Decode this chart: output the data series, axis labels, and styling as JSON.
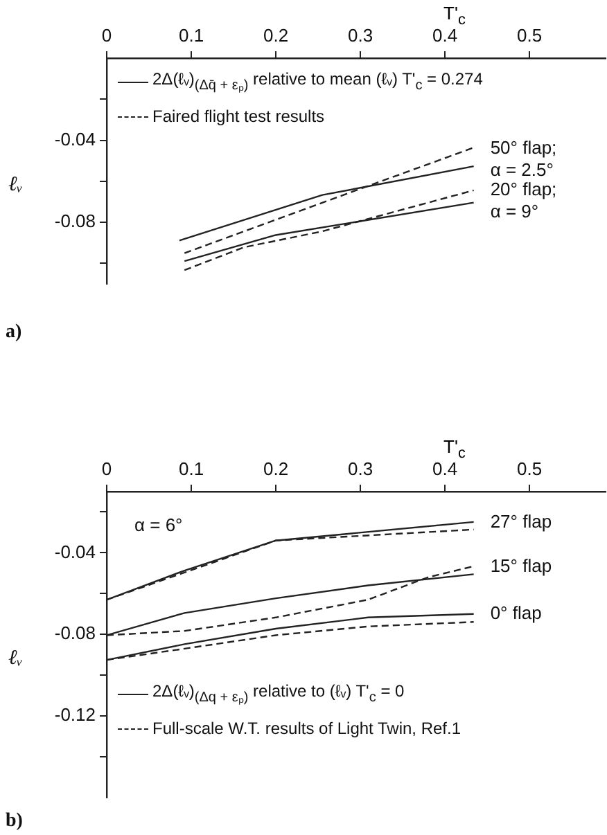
{
  "chart_data": [
    {
      "type": "line",
      "title": "a)",
      "ylabel": "ℓᵥ",
      "xlabel": "T'$_{c}$",
      "xlim": [
        0,
        0.59
      ],
      "xticks": [
        0,
        0.1,
        0.2,
        0.3,
        0.4,
        0.5
      ],
      "ylim": [
        -0.11,
        0
      ],
      "yticks": [
        {
          "value": -0.02,
          "label": null
        },
        -0.04,
        {
          "value": -0.06,
          "label": null
        },
        -0.08,
        {
          "value": -0.1,
          "label": null
        }
      ],
      "grid": false,
      "legend": "top left",
      "marker": "none",
      "series": [
        {
          "name": "2Δ(ℓᵥ)$_{(Δq̄ + εₚ)}$ relative to mean (ℓᵥ) T'$_{c}$ = 0.274",
          "color": "#222222",
          "line_style": "solid",
          "x": [
            0.086,
            0.255,
            0.434
          ],
          "values": [
            -0.0889,
            -0.0667,
            -0.0527
          ]
        },
        {
          "name": "Faired flight test results",
          "color": "#222222",
          "line_style": "dashed",
          "x": [
            0.092,
            0.287,
            0.434
          ],
          "values": [
            -0.095,
            -0.0656,
            -0.0436
          ]
        },
        {
          "color": "#222222",
          "line_style": "solid",
          "x": [
            0.092,
            0.2,
            0.434
          ],
          "values": [
            -0.0989,
            -0.0862,
            -0.0704
          ]
        },
        {
          "color": "#222222",
          "line_style": "dashed",
          "x": [
            0.092,
            0.162,
            0.255,
            0.434
          ],
          "values": [
            -0.1033,
            -0.0922,
            -0.0844,
            -0.0644
          ]
        }
      ],
      "annotations": [
        "50° flap;\nα = 2.5°",
        "20° flap;\nα = 9°"
      ]
    },
    {
      "type": "line",
      "title": "b)",
      "ylabel": "ℓᵥ",
      "xlabel": "T'$_{c}$",
      "xlim": [
        0,
        0.59
      ],
      "xticks": [
        0,
        0.1,
        0.2,
        0.3,
        0.4,
        0.5
      ],
      "ylim": [
        -0.16,
        -0.01
      ],
      "yticks": [
        {
          "value": -0.02,
          "label": null
        },
        -0.04,
        {
          "value": -0.06,
          "label": null
        },
        -0.08,
        {
          "value": -0.1,
          "label": null
        },
        -0.12,
        {
          "value": -0.14,
          "label": null
        }
      ],
      "grid": false,
      "legend": "bottom left",
      "marker": "none",
      "series": [
        {
          "name": "2Δ(ℓᵥ)$_{(Δq + εₚ)}$ relative to (ℓᵥ) T'$_{c}$ = 0",
          "color": "#222222",
          "line_style": "solid",
          "x": [
            0,
            0.092,
            0.2,
            0.434
          ],
          "values": [
            -0.063,
            -0.0487,
            -0.034,
            -0.0249
          ]
        },
        {
          "name": "Full-scale W.T. results of Light Twin, Ref.1",
          "color": "#222222",
          "line_style": "dashed",
          "x": [
            0,
            0.2,
            0.434
          ],
          "values": [
            -0.063,
            -0.034,
            -0.0286
          ]
        },
        {
          "color": "#222222",
          "line_style": "solid",
          "x": [
            0,
            0.092,
            0.2,
            0.309,
            0.434
          ],
          "values": [
            -0.0804,
            -0.0695,
            -0.0623,
            -0.056,
            -0.0505
          ]
        },
        {
          "color": "#222222",
          "line_style": "dashed",
          "x": [
            0,
            0.092,
            0.2,
            0.309,
            0.38,
            0.434
          ],
          "values": [
            -0.0804,
            -0.0783,
            -0.0717,
            -0.063,
            -0.052,
            -0.0466
          ]
        },
        {
          "color": "#222222",
          "line_style": "solid",
          "x": [
            0,
            0.092,
            0.2,
            0.309,
            0.434
          ],
          "values": [
            -0.0925,
            -0.0848,
            -0.0772,
            -0.0717,
            -0.07
          ]
        },
        {
          "color": "#222222",
          "line_style": "dashed",
          "x": [
            0,
            0.092,
            0.2,
            0.309,
            0.434
          ],
          "values": [
            -0.0925,
            -0.087,
            -0.0804,
            -0.0761,
            -0.0739
          ]
        }
      ],
      "annotations": [
        "α = 6°",
        "27° flap",
        "15° flap",
        "0° flap"
      ]
    }
  ]
}
